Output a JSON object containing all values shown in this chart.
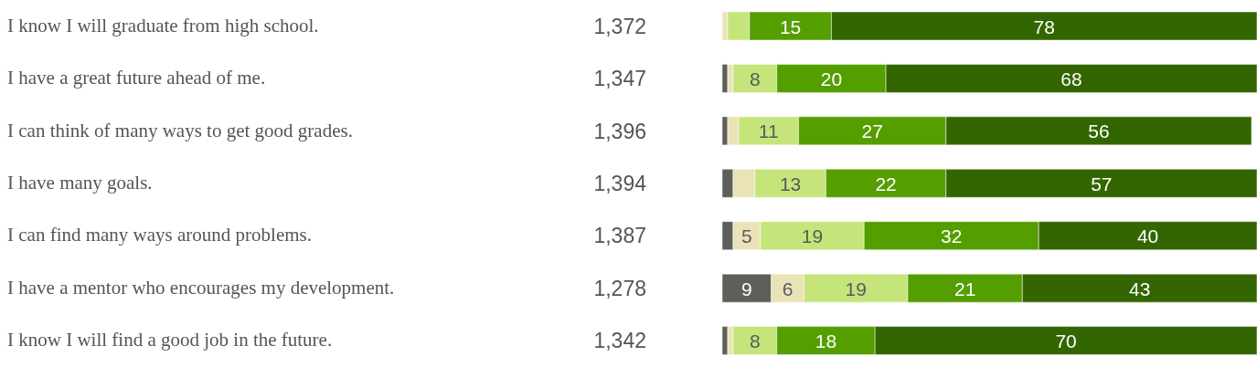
{
  "chart_data": {
    "type": "bar",
    "orientation": "horizontal",
    "stacked": true,
    "categories": [
      "I know I will graduate from high school.",
      "I have a great future ahead of me.",
      "I can think of many ways to get good grades.",
      "I have many goals.",
      "I can find many ways around problems.",
      "I have a mentor who encourages my development.",
      "I know I will find a good job in the future."
    ],
    "annotations": [
      "1,372",
      "1,347",
      "1,396",
      "1,394",
      "1,387",
      "1,278",
      "1,342"
    ],
    "series": [
      {
        "color": "#5f5f5a",
        "values": [
          0,
          1,
          1,
          2,
          2,
          9,
          1
        ],
        "value_labels": [
          null,
          null,
          null,
          null,
          null,
          "9",
          null
        ]
      },
      {
        "color": "#ebe3b8",
        "values": [
          1,
          1,
          2,
          4,
          5,
          6,
          1
        ],
        "value_labels": [
          null,
          null,
          null,
          null,
          "5",
          "6",
          null
        ]
      },
      {
        "color": "#c5e57a",
        "values": [
          4,
          8,
          11,
          13,
          19,
          19,
          8
        ],
        "value_labels": [
          null,
          "8",
          "11",
          "13",
          "19",
          "19",
          "8"
        ]
      },
      {
        "color": "#559e00",
        "values": [
          15,
          20,
          27,
          22,
          32,
          21,
          18
        ],
        "value_labels": [
          "15",
          "20",
          "27",
          "22",
          "32",
          "21",
          "18"
        ]
      },
      {
        "color": "#336600",
        "values": [
          78,
          68,
          56,
          57,
          40,
          43,
          70
        ],
        "value_labels": [
          "78",
          "68",
          "56",
          "57",
          "40",
          "43",
          "70"
        ]
      }
    ],
    "grid": false,
    "legend": false
  }
}
